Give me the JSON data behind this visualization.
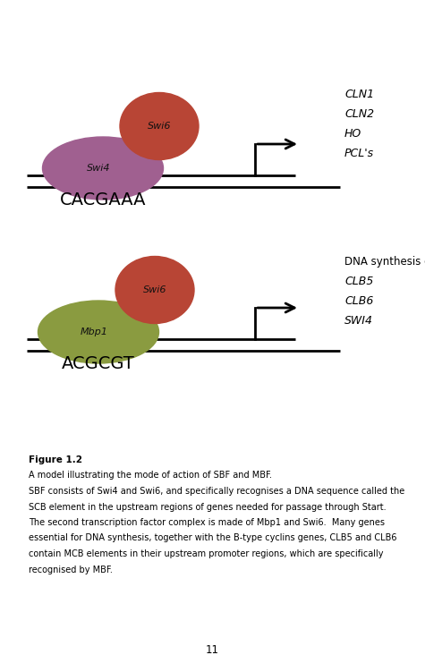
{
  "bg_color": "#ffffff",
  "panel1": {
    "swi4_color": "#a06090",
    "swi6_color": "#b84535",
    "swi4_label": "Swi4",
    "swi6_label": "Swi6",
    "dna_label": "CACGAAA",
    "genes": [
      "CLN1",
      "CLN2",
      "HO",
      "PCL's"
    ]
  },
  "panel2": {
    "mbp1_color": "#8a9b40",
    "swi6_color": "#b84535",
    "mbp1_label": "Mbp1",
    "swi6_label": "Swi6",
    "dna_label": "ACGCGT",
    "genes_header": "DNA synthesis genes",
    "genes": [
      "CLB5",
      "CLB6",
      "SWI4"
    ]
  },
  "caption_bold": "Figure 1.2",
  "caption_lines": [
    "A model illustrating the mode of action of SBF and MBF.",
    "SBF consists of Swi4 and Swi6, and specifically recognises a DNA sequence called the",
    "SCB element in the upstream regions of genes needed for passage through Start.",
    "The second transcription factor complex is made of Mbp1 and Swi6.  Many genes",
    "essential for DNA synthesis, together with the B-type cyclins genes, CLB5 and CLB6",
    "contain MCB elements in their upstream promoter regions, which are specifically",
    "recognised by MBF."
  ],
  "page_number": "11"
}
